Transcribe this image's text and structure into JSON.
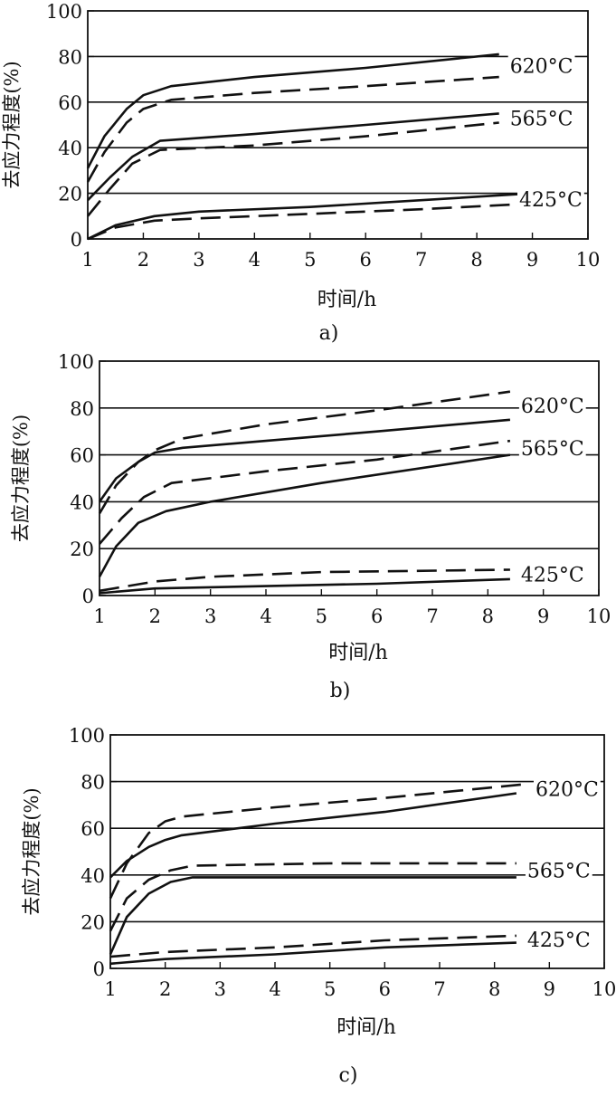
{
  "chart_data": [
    {
      "type": "line",
      "caption": "a)",
      "xlabel": "时间/h",
      "ylabel": "去应力程度(%)",
      "xlim": [
        1,
        10
      ],
      "ylim": [
        0,
        100
      ],
      "xticks": [
        "1",
        "2",
        "3",
        "4",
        "5",
        "6",
        "7",
        "8",
        "9",
        "10"
      ],
      "yticks": [
        "0",
        "20",
        "40",
        "60",
        "80",
        "100"
      ],
      "gridlines_y": [
        20,
        40,
        60,
        80
      ],
      "temp_labels": [
        {
          "text": "620°C",
          "anchor": "620"
        },
        {
          "text": "565°C",
          "anchor": "565"
        },
        {
          "text": "425°C",
          "anchor": "425"
        }
      ],
      "series": [
        {
          "name": "620°C solid",
          "temp": "620",
          "style": "solid",
          "x": [
            1,
            1.3,
            1.7,
            2.0,
            2.5,
            4,
            6,
            8.4
          ],
          "y": [
            31,
            45,
            57,
            63,
            67,
            71,
            75,
            81
          ]
        },
        {
          "name": "620°C dashed",
          "temp": "620",
          "style": "dashed",
          "x": [
            1,
            1.3,
            1.7,
            2.0,
            2.5,
            4,
            6,
            8.4
          ],
          "y": [
            25,
            38,
            51,
            57,
            61,
            64,
            67,
            71
          ]
        },
        {
          "name": "565°C solid",
          "temp": "565",
          "style": "solid",
          "x": [
            1,
            1.4,
            1.8,
            2.3,
            4,
            6,
            8.4
          ],
          "y": [
            17,
            27,
            36,
            43,
            46,
            50,
            55
          ]
        },
        {
          "name": "565°C dashed",
          "temp": "565",
          "style": "dashed",
          "x": [
            1,
            1.4,
            1.8,
            2.3,
            4,
            6,
            8.4
          ],
          "y": [
            10,
            22,
            33,
            39,
            41,
            45,
            51
          ]
        },
        {
          "name": "425°C solid",
          "temp": "425",
          "style": "solid",
          "x": [
            1,
            1.5,
            2.2,
            3,
            5,
            7,
            9
          ],
          "y": [
            0,
            6,
            10,
            12,
            14,
            17,
            20
          ]
        },
        {
          "name": "425°C dashed",
          "temp": "425",
          "style": "dashed",
          "x": [
            1,
            1.5,
            2.2,
            3,
            5,
            7,
            8.6
          ],
          "y": [
            0,
            5,
            8,
            9,
            11,
            13,
            15
          ]
        }
      ]
    },
    {
      "type": "line",
      "caption": "b)",
      "xlabel": "时间/h",
      "ylabel": "去应力程度(%)",
      "xlim": [
        1,
        10
      ],
      "ylim": [
        0,
        100
      ],
      "xticks": [
        "1",
        "2",
        "3",
        "4",
        "5",
        "6",
        "7",
        "8",
        "9",
        "10"
      ],
      "yticks": [
        "0",
        "20",
        "40",
        "60",
        "80",
        "100"
      ],
      "gridlines_y": [
        20,
        40,
        60,
        80
      ],
      "temp_labels": [
        {
          "text": "620°C",
          "anchor": "620"
        },
        {
          "text": "565°C",
          "anchor": "565"
        },
        {
          "text": "425°C",
          "anchor": "425"
        }
      ],
      "series": [
        {
          "name": "620°C dashed",
          "temp": "620",
          "style": "dashed",
          "x": [
            1,
            1.3,
            1.7,
            2.0,
            2.5,
            4,
            6,
            8.4
          ],
          "y": [
            35,
            47,
            57,
            62,
            67,
            73,
            79,
            87
          ]
        },
        {
          "name": "620°C solid",
          "temp": "620",
          "style": "solid",
          "x": [
            1,
            1.3,
            1.7,
            2.0,
            2.5,
            4,
            6,
            8.4
          ],
          "y": [
            40,
            50,
            57,
            61,
            63,
            66,
            70,
            75
          ]
        },
        {
          "name": "565°C dashed",
          "temp": "565",
          "style": "dashed",
          "x": [
            1,
            1.4,
            1.8,
            2.3,
            4,
            6,
            8.4
          ],
          "y": [
            22,
            33,
            42,
            48,
            53,
            58,
            66
          ]
        },
        {
          "name": "565°C solid",
          "temp": "565",
          "style": "solid",
          "x": [
            1,
            1.3,
            1.7,
            2.2,
            3,
            5,
            8.4
          ],
          "y": [
            8,
            21,
            31,
            36,
            40,
            48,
            60
          ]
        },
        {
          "name": "425°C dashed",
          "temp": "425",
          "style": "dashed",
          "x": [
            1,
            2,
            3,
            5,
            8.4
          ],
          "y": [
            2,
            6,
            8,
            10,
            11
          ]
        },
        {
          "name": "425°C solid",
          "temp": "425",
          "style": "solid",
          "x": [
            1,
            2,
            4,
            6,
            8.4
          ],
          "y": [
            1,
            3,
            4,
            5,
            7
          ]
        }
      ]
    },
    {
      "type": "line",
      "caption": "c)",
      "xlabel": "时间/h",
      "ylabel": "去应力程度(%)",
      "xlim": [
        1,
        10
      ],
      "ylim": [
        0,
        100
      ],
      "xticks": [
        "1",
        "2",
        "3",
        "4",
        "5",
        "6",
        "7",
        "8",
        "9",
        "10"
      ],
      "yticks": [
        "0",
        "20",
        "40",
        "60",
        "80",
        "100"
      ],
      "gridlines_y": [
        20,
        40,
        60,
        80
      ],
      "temp_labels": [
        {
          "text": "620°C",
          "anchor": "620"
        },
        {
          "text": "565°C",
          "anchor": "565"
        },
        {
          "text": "425°C",
          "anchor": "425"
        }
      ],
      "series": [
        {
          "name": "620°C dashed",
          "temp": "620",
          "style": "dashed",
          "x": [
            1,
            1.3,
            1.7,
            2.0,
            2.3,
            4,
            6,
            8.6
          ],
          "y": [
            30,
            45,
            58,
            63,
            65,
            69,
            73,
            79
          ]
        },
        {
          "name": "620°C solid",
          "temp": "620",
          "style": "solid",
          "x": [
            1,
            1.3,
            1.7,
            2.0,
            2.3,
            4,
            6,
            8.4
          ],
          "y": [
            39,
            46,
            52,
            55,
            57,
            62,
            67,
            75
          ]
        },
        {
          "name": "565°C dashed",
          "temp": "565",
          "style": "dashed",
          "x": [
            1,
            1.3,
            1.7,
            2.1,
            2.5,
            5,
            8.4
          ],
          "y": [
            16,
            30,
            38,
            42,
            44,
            45,
            45
          ]
        },
        {
          "name": "565°C solid",
          "temp": "565",
          "style": "solid",
          "x": [
            1,
            1.3,
            1.7,
            2.1,
            2.5,
            5,
            8.4
          ],
          "y": [
            6,
            22,
            32,
            37,
            39,
            39,
            39
          ]
        },
        {
          "name": "425°C dashed",
          "temp": "425",
          "style": "dashed",
          "x": [
            1,
            2,
            4,
            6,
            8.4
          ],
          "y": [
            5,
            7,
            9,
            12,
            14
          ]
        },
        {
          "name": "425°C solid",
          "temp": "425",
          "style": "solid",
          "x": [
            1,
            2,
            4,
            6,
            8.4
          ],
          "y": [
            2,
            4,
            6,
            9,
            11
          ]
        }
      ]
    }
  ]
}
